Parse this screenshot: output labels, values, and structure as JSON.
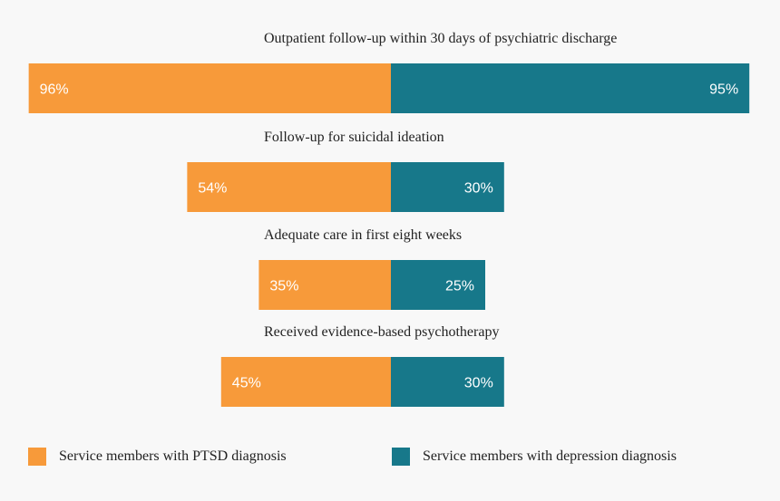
{
  "chart_data": {
    "type": "bar",
    "orientation": "diverging-horizontal",
    "categories": [
      "Outpatient follow-up within 30 days of psychiatric discharge",
      "Follow-up for suicidal ideation",
      "Adequate care in first eight weeks",
      "Received evidence-based psychotherapy"
    ],
    "series": [
      {
        "name": "Service members with PTSD diagnosis",
        "values": [
          96,
          54,
          35,
          45
        ],
        "labels": [
          "96%",
          "54%",
          "35%",
          "45%"
        ],
        "color": "#f79a3a"
      },
      {
        "name": "Service members with depression diagnosis",
        "values": [
          95,
          30,
          25,
          30
        ],
        "labels": [
          "95%",
          "30%",
          "25%",
          "30%"
        ],
        "color": "#17788a"
      }
    ],
    "unit": "%",
    "xlim": [
      0,
      100
    ],
    "grid": false,
    "legend": "bottom"
  }
}
